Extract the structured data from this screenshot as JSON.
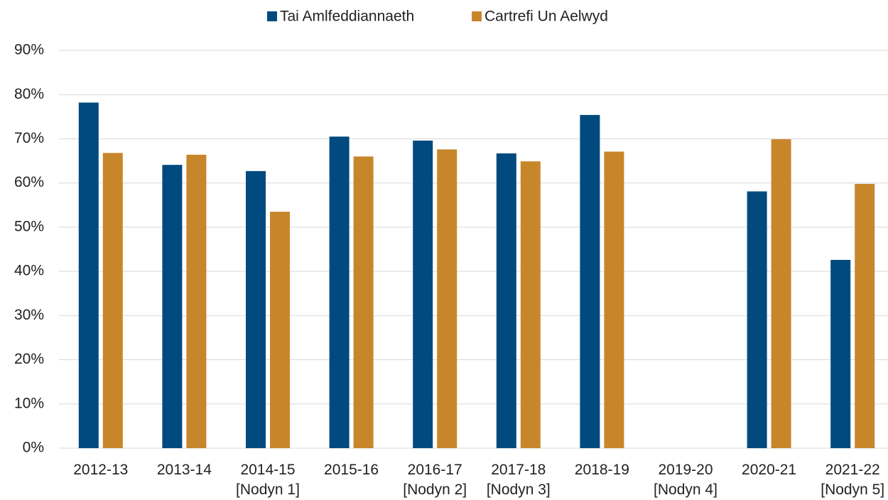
{
  "chart_data": {
    "type": "bar",
    "categories": [
      "2012-13",
      "2013-14",
      "2014-15\n[Nodyn 1]",
      "2015-16",
      "2016-17\n[Nodyn 2]",
      "2017-18\n[Nodyn 3]",
      "2018-19",
      "2019-20\n[Nodyn 4]",
      "2020-21",
      "2021-22\n[Nodyn 5]"
    ],
    "series": [
      {
        "name": "Tai Amlfeddiannaeth",
        "color": "#004a7f",
        "values": [
          78.2,
          64.1,
          62.7,
          70.5,
          69.6,
          66.7,
          75.4,
          null,
          58.1,
          42.6
        ]
      },
      {
        "name": "Cartrefi Un Aelwyd",
        "color": "#c8862b",
        "values": [
          66.8,
          66.4,
          53.5,
          66.0,
          67.6,
          64.9,
          67.1,
          null,
          69.9,
          59.8
        ]
      }
    ],
    "ylim": [
      0,
      90
    ],
    "yticks": [
      {
        "value": 0,
        "label": "0%"
      },
      {
        "value": 10,
        "label": "10%"
      },
      {
        "value": 20,
        "label": "20%"
      },
      {
        "value": 30,
        "label": "30%"
      },
      {
        "value": 40,
        "label": "40%"
      },
      {
        "value": 50,
        "label": "50%"
      },
      {
        "value": 60,
        "label": "60%"
      },
      {
        "value": 70,
        "label": "70%"
      },
      {
        "value": 80,
        "label": "80%"
      },
      {
        "value": 90,
        "label": "90%"
      }
    ],
    "grid": true,
    "legend": "top"
  }
}
